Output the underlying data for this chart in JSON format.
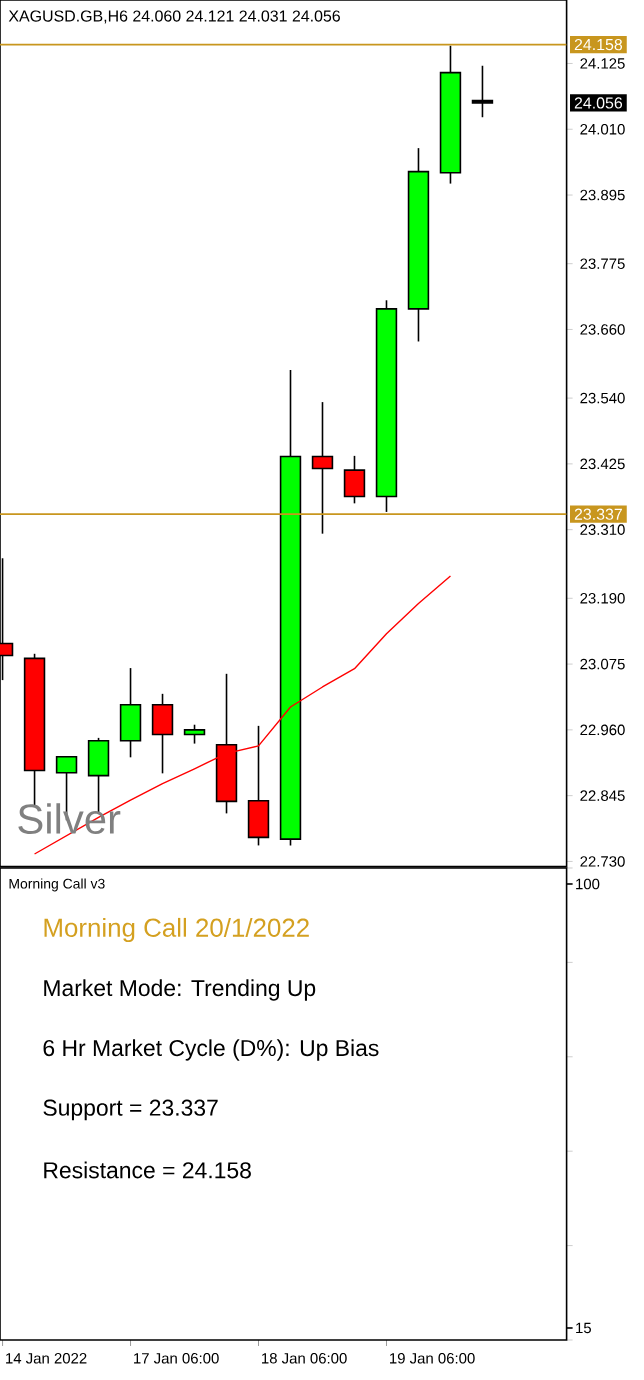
{
  "chart_data": [
    {
      "type": "candlestick",
      "title": "XAGUSD.GB,H6  24.060 24.121 24.031 24.056",
      "categories": [
        null,
        null,
        null,
        null,
        null,
        null,
        null,
        null,
        null,
        null,
        null,
        null,
        null,
        null,
        null,
        null
      ],
      "ohlc": [
        [
          23.111,
          23.26,
          23.047,
          23.09
        ],
        [
          23.085,
          23.093,
          22.827,
          22.889
        ],
        [
          22.885,
          22.913,
          22.802,
          22.913
        ],
        [
          22.88,
          22.946,
          22.814,
          22.941
        ],
        [
          22.941,
          23.068,
          22.912,
          23.004
        ],
        [
          23.004,
          23.023,
          22.884,
          22.952
        ],
        [
          22.952,
          22.969,
          22.936,
          22.96
        ],
        [
          22.934,
          23.058,
          22.814,
          22.835
        ],
        [
          22.836,
          22.967,
          22.758,
          22.772
        ],
        [
          22.769,
          23.589,
          22.758,
          23.438
        ],
        [
          23.438,
          23.533,
          23.303,
          23.417
        ],
        [
          23.414,
          23.439,
          23.356,
          23.368
        ],
        [
          23.368,
          23.711,
          23.341,
          23.696
        ],
        [
          23.696,
          23.977,
          23.639,
          23.936
        ],
        [
          23.934,
          24.156,
          23.915,
          24.109
        ],
        [
          24.06,
          24.121,
          24.031,
          24.056
        ]
      ],
      "colors": [
        "#ff0000",
        "#ff0000",
        "#00ff00",
        "#00ff00",
        "#00ff00",
        "#ff0000",
        "#00ff00",
        "#ff0000",
        "#ff0000",
        "#00ff00",
        "#ff0000",
        "#ff0000",
        "#00ff00",
        "#00ff00",
        "#00ff00",
        "#000000"
      ],
      "series": [
        {
          "type": "line",
          "color": "#ff0000",
          "values": [
            null,
            22.743,
            22.775,
            22.807,
            22.837,
            22.866,
            22.892,
            22.919,
            22.932,
            23.0,
            23.035,
            23.067,
            23.128,
            23.181,
            23.229,
            null
          ]
        }
      ],
      "ylim": [
        22.721,
        24.236
      ],
      "yticks": [
        {
          "value": 22.73,
          "label": "22.730"
        },
        {
          "value": 22.845,
          "label": "22.845"
        },
        {
          "value": 22.96,
          "label": "22.960"
        },
        {
          "value": 23.075,
          "label": "23.075"
        },
        {
          "value": 23.19,
          "label": "23.190"
        },
        {
          "value": 23.31,
          "label": "23.310"
        },
        {
          "value": 23.425,
          "label": "23.425"
        },
        {
          "value": 23.54,
          "label": "23.540"
        },
        {
          "value": 23.66,
          "label": "23.660"
        },
        {
          "value": 23.775,
          "label": "23.775"
        },
        {
          "value": 23.895,
          "label": "23.895"
        },
        {
          "value": 24.01,
          "label": "24.010"
        },
        {
          "value": 24.125,
          "label": "24.125"
        }
      ],
      "ref_lines": [
        {
          "axis": "y",
          "value": 24.158,
          "label": "24.158",
          "color": "#c8961e"
        },
        {
          "axis": "y",
          "value": 23.337,
          "label": "23.337",
          "color": "#c8961e"
        }
      ],
      "annotations": [
        "Silver",
        "24.056"
      ],
      "tick_labels": "y"
    },
    {
      "type": "other",
      "title": "Morning Call v3",
      "categories": [
        "14 Jan 2022",
        null,
        null,
        null,
        "17 Jan 06:00",
        null,
        null,
        null,
        "18 Jan 06:00",
        null,
        null,
        null,
        "19 Jan 06:00",
        null,
        null,
        null
      ],
      "annotations": [
        "Morning Call 20/1/2022",
        "Market Mode: Trending Up",
        "6 Hr Market Cycle (D%): Up Bias",
        "Support = 23.337",
        "Resistance = 24.158",
        "100",
        "15"
      ]
    }
  ]
}
